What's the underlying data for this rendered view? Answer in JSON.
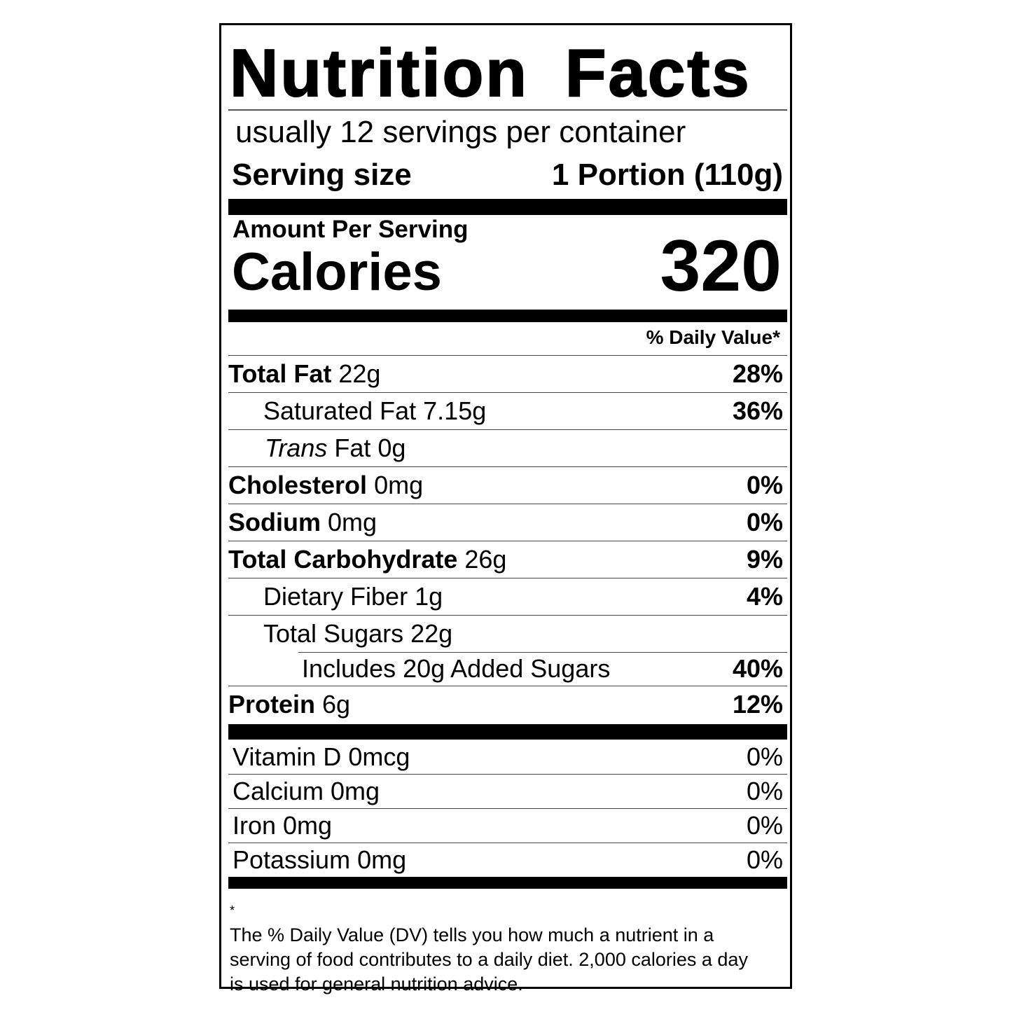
{
  "title": [
    "Nutrition",
    "Facts"
  ],
  "servings_per_container": "usually 12 servings per container",
  "serving_size": {
    "label": "Serving size",
    "value": "1 Portion (110g)"
  },
  "amount_per_serving": "Amount Per Serving",
  "calories": {
    "label": "Calories",
    "value": "320"
  },
  "daily_value_header": "% Daily Value*",
  "nutrients": [
    {
      "name": "Total Fat",
      "amount": "22g",
      "dv": "28%"
    },
    {
      "name": "Saturated Fat",
      "amount": "7.15g",
      "dv": "36%"
    },
    {
      "name": "Trans",
      "name_rest": "Fat",
      "amount": "0g",
      "dv": ""
    },
    {
      "name": "Cholesterol",
      "amount": "0mg",
      "dv": "0%"
    },
    {
      "name": "Sodium",
      "amount": "0mg",
      "dv": "0%"
    },
    {
      "name": "Total Carbohydrate",
      "amount": "26g",
      "dv": "9%"
    },
    {
      "name": "Dietary Fiber",
      "amount": "1g",
      "dv": "4%"
    },
    {
      "name": "Total Sugars",
      "amount": "22g",
      "dv": ""
    },
    {
      "name": "Includes 20g Added Sugars",
      "amount": "",
      "dv": "40%"
    },
    {
      "name": "Protein",
      "amount": "6g",
      "dv": "12%"
    }
  ],
  "micronutrients": [
    {
      "text": "Vitamin D 0mcg",
      "dv": "0%"
    },
    {
      "text": "Calcium 0mg",
      "dv": "0%"
    },
    {
      "text": "Iron 0mg",
      "dv": "0%"
    },
    {
      "text": "Potassium 0mg",
      "dv": "0%"
    }
  ],
  "footnote": {
    "star": "*",
    "text": "The % Daily Value (DV) tells you how much a nutrient in a serving of food contributes to a daily diet. 2,000 calories a day is used for general nutrition advice."
  }
}
